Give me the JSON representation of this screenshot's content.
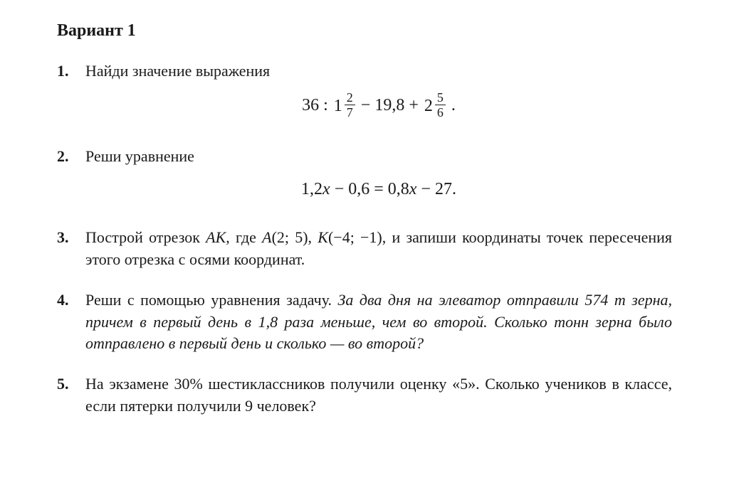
{
  "typography": {
    "font_family": "Georgia, Times New Roman, serif",
    "title_fontsize": 24,
    "body_fontsize": 22,
    "equation_fontsize": 24,
    "fraction_fontsize": 18,
    "text_color": "#1a1a1a",
    "background_color": "#ffffff",
    "title_weight": "bold",
    "num_weight": "bold"
  },
  "title": "Вариант 1",
  "problems": [
    {
      "num": "1.",
      "lead": "Найди значение выражения",
      "eq": {
        "a": "36 : ",
        "m1_whole": "1",
        "m1_num": "2",
        "m1_den": "7",
        "b": " − 19,8 + ",
        "m2_whole": "2",
        "m2_num": "5",
        "m2_den": "6",
        "tail": " ."
      }
    },
    {
      "num": "2.",
      "lead": "Реши уравнение",
      "eq_text_a": "1,2",
      "eq_var1": "x",
      "eq_text_b": " − 0,6 = 0,8",
      "eq_var2": "x",
      "eq_text_c": " − 27."
    },
    {
      "num": "3.",
      "t1": "Построй отрезок ",
      "AK_i": "AK",
      "t2": ", где ",
      "A_i": "A",
      "t3": "(2; 5), ",
      "K_i": "K",
      "t4": "(−4; −1), и запиши ко­ординаты точек пересечения этого отрезка с осями коорди­нат."
    },
    {
      "num": "4.",
      "plain": "Реши с помощью уравнения задачу. ",
      "italic": "За два дня на элеватор отправили 574 т зерна, причем в первый день в 1,8 раза меньше, чем во второй. Сколько тонн зерна было отправ­лено в первый день и сколько — во второй?"
    },
    {
      "num": "5.",
      "text": "На экзамене 30% шестиклассников получили оценку «5». Сколько учеников в классе, если пятерки получили 9 че­ловек?"
    }
  ]
}
